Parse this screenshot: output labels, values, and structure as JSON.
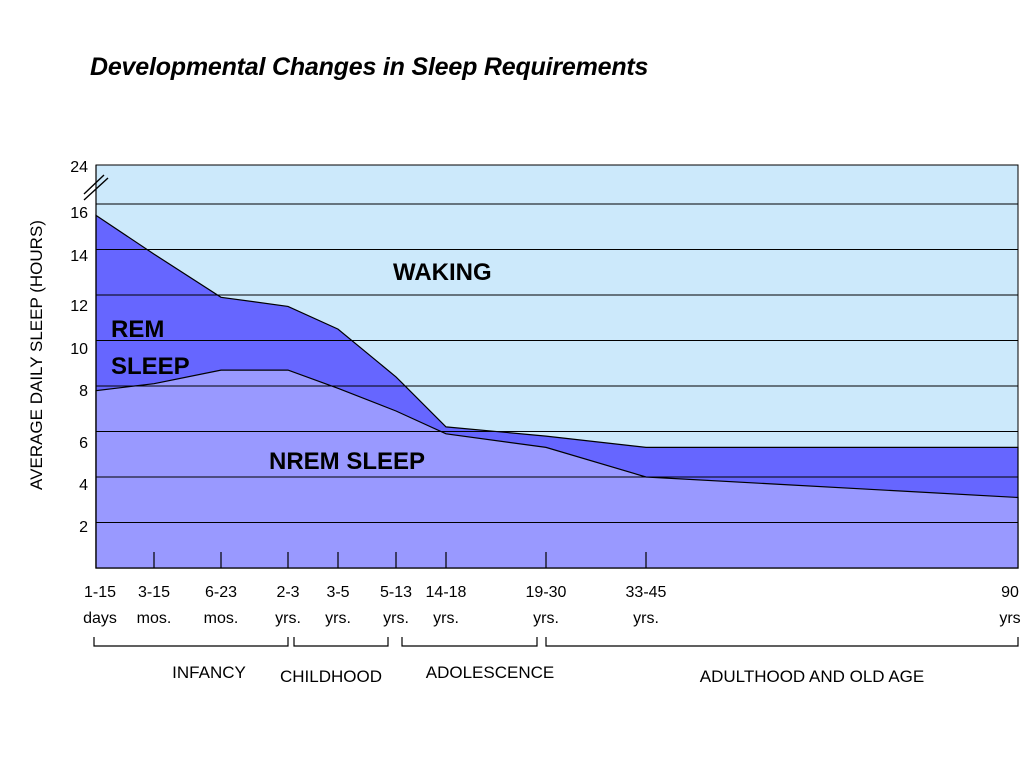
{
  "title": "Developmental Changes in Sleep Requirements",
  "chart_data": {
    "type": "area",
    "title": "Developmental Changes in Sleep Requirements",
    "ylabel": "AVERAGE DAILY SLEEP (HOURS)",
    "xlabel": "",
    "ylim": [
      0,
      24
    ],
    "y_axis_break": "between 16 and 24",
    "y_ticks": [
      "2",
      "4",
      "6",
      "8",
      "10",
      "12",
      "14",
      "16",
      "24"
    ],
    "grid": true,
    "x_categories": [
      {
        "line1": "1-15",
        "line2": "days"
      },
      {
        "line1": "3-15",
        "line2": "mos."
      },
      {
        "line1": "6-23",
        "line2": "mos."
      },
      {
        "line1": "2-3",
        "line2": "yrs."
      },
      {
        "line1": "3-5",
        "line2": "yrs."
      },
      {
        "line1": "5-13",
        "line2": "yrs."
      },
      {
        "line1": "14-18",
        "line2": "yrs."
      },
      {
        "line1": "19-30",
        "line2": "yrs."
      },
      {
        "line1": "33-45",
        "line2": "yrs."
      },
      {
        "line1": "90",
        "line2": "yrs"
      }
    ],
    "stages": [
      "INFANCY",
      "CHILDHOOD",
      "ADOLESCENCE",
      "ADULTHOOD AND OLD AGE"
    ],
    "series": [
      {
        "name": "NREM SLEEP",
        "values": [
          7.8,
          8.1,
          8.7,
          8.7,
          7.9,
          6.9,
          5.9,
          5.3,
          4.0,
          3.1
        ]
      },
      {
        "name": "REM SLEEP",
        "values": [
          15.5,
          13.8,
          11.9,
          11.5,
          10.5,
          8.4,
          6.2,
          5.8,
          5.3,
          5.3
        ]
      },
      {
        "name": "WAKING",
        "values": []
      }
    ],
    "colors": {
      "waking": "#cce9fb",
      "rem": "#6666ff",
      "nrem": "#9999ff",
      "line": "#000000"
    }
  }
}
